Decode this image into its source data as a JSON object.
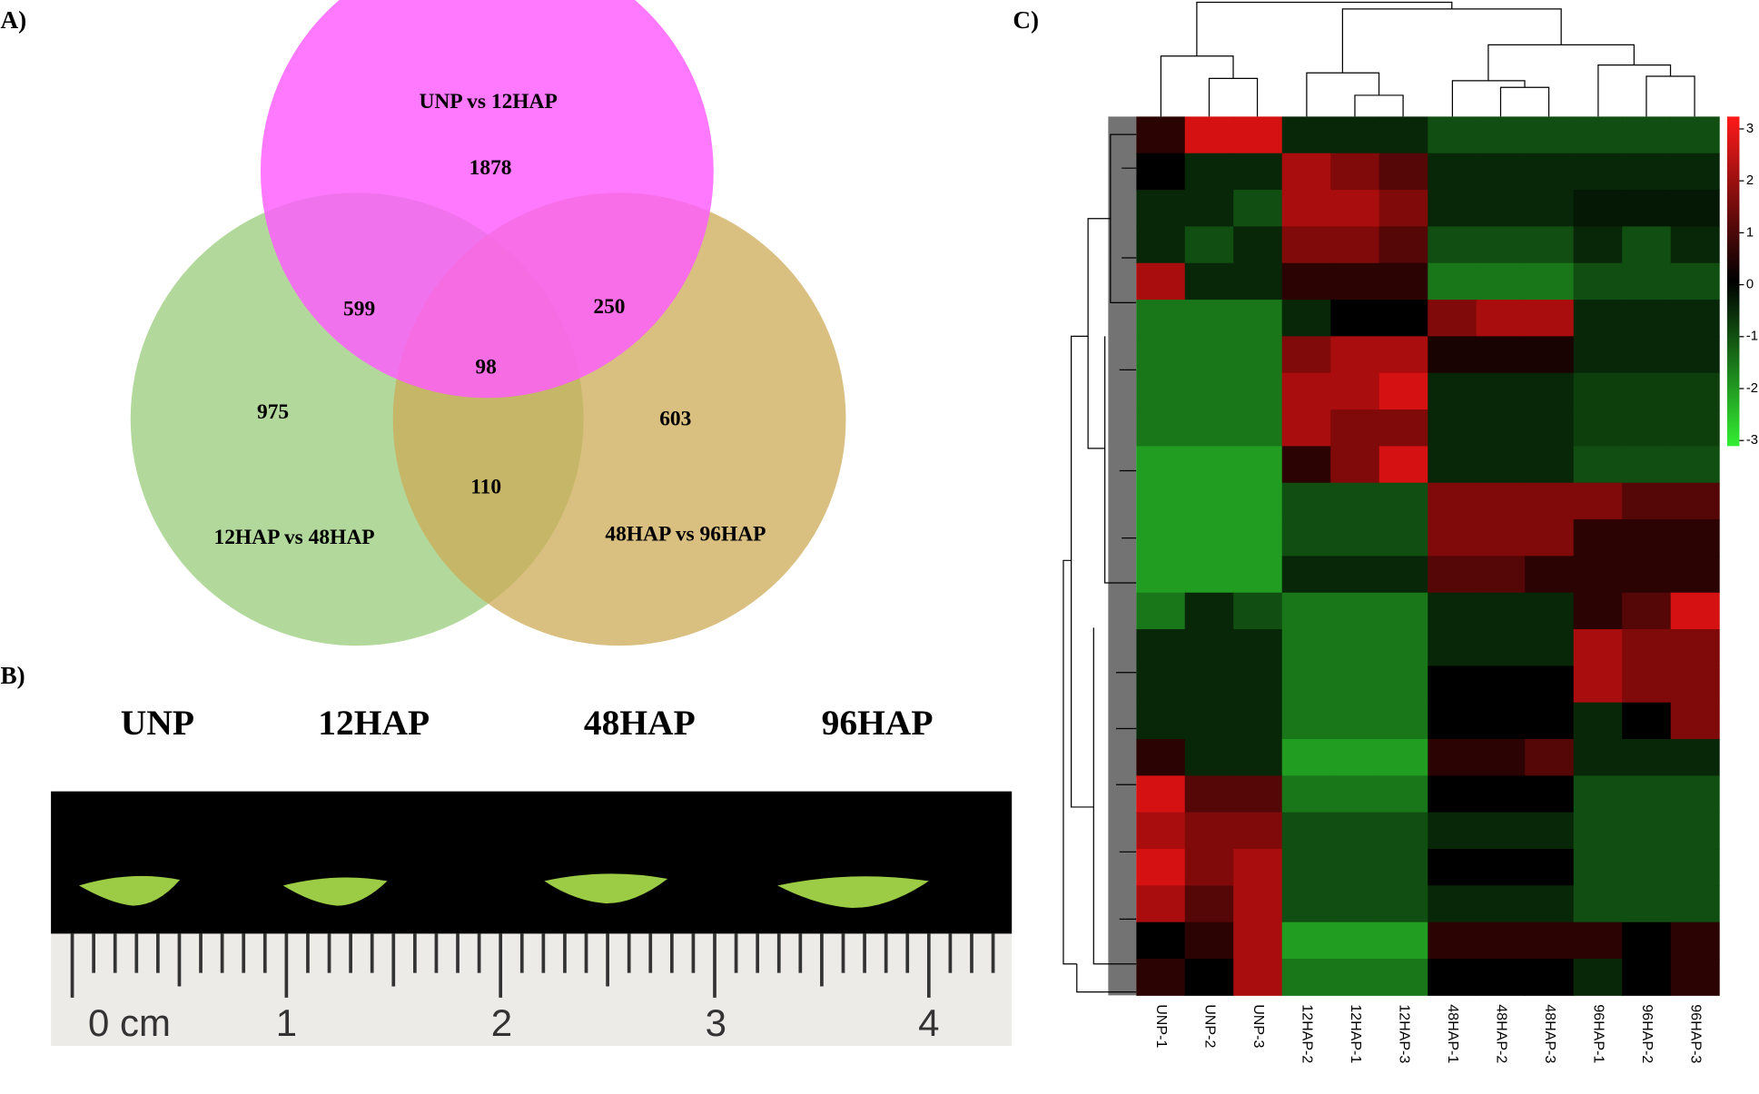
{
  "panels": [
    "A)",
    "B)",
    "C)"
  ],
  "chart_data": [
    {
      "type": "venn",
      "sets": [
        {
          "name": "UNP vs 12HAP",
          "color": "#ff5cff"
        },
        {
          "name": "12HAP vs 48HAP",
          "color": "#98cc7a"
        },
        {
          "name": "48HAP vs 96HAP",
          "color": "#ccaa55"
        }
      ],
      "regions": [
        {
          "sets": [
            0
          ],
          "value": 1878
        },
        {
          "sets": [
            1
          ],
          "value": 975
        },
        {
          "sets": [
            2
          ],
          "value": 603
        },
        {
          "sets": [
            0,
            1
          ],
          "value": 599
        },
        {
          "sets": [
            0,
            2
          ],
          "value": 250
        },
        {
          "sets": [
            1,
            2
          ],
          "value": 110
        },
        {
          "sets": [
            0,
            1,
            2
          ],
          "value": 98
        }
      ]
    },
    {
      "type": "heatmap",
      "categories": [
        "UNP-1",
        "UNP-2",
        "UNP-3",
        "12HAP-2",
        "12HAP-1",
        "12HAP-3",
        "48HAP-1",
        "48HAP-2",
        "48HAP-3",
        "96HAP-1",
        "96HAP-2",
        "96HAP-3"
      ],
      "zlim": [
        -3,
        3
      ],
      "zticks": [
        3,
        2,
        1,
        0,
        -1,
        -2,
        -3
      ],
      "values": [
        [
          0.5,
          2.5,
          2.5,
          -0.5,
          -0.5,
          -0.5,
          -1,
          -1,
          -1,
          -1,
          -1,
          -1
        ],
        [
          0,
          -0.5,
          -0.5,
          2,
          1.5,
          1,
          -0.5,
          -0.5,
          -0.5,
          -0.5,
          -0.5,
          -0.5
        ],
        [
          -0.5,
          -0.5,
          -1,
          2,
          2,
          1.5,
          -0.5,
          -0.5,
          -0.5,
          -0.3,
          -0.3,
          -0.3
        ],
        [
          -0.5,
          -1,
          -0.5,
          1.5,
          1.5,
          1,
          -1,
          -1,
          -1,
          -0.5,
          -1,
          -0.5
        ],
        [
          2,
          -0.5,
          -0.5,
          0.5,
          0.5,
          0.5,
          -1.5,
          -1.5,
          -1.5,
          -1,
          -1,
          -1
        ],
        [
          -1.5,
          -1.5,
          -1.5,
          -0.5,
          0,
          0,
          1.5,
          2,
          2,
          -0.5,
          -0.5,
          -0.5
        ],
        [
          -1.5,
          -1.5,
          -1.5,
          1.5,
          2,
          2,
          0.3,
          0.3,
          0.3,
          -0.5,
          -0.5,
          -0.5
        ],
        [
          -1.5,
          -1.5,
          -1.5,
          2,
          2,
          2.5,
          -0.5,
          -0.5,
          -0.5,
          -0.8,
          -0.8,
          -0.8
        ],
        [
          -1.5,
          -1.5,
          -1.5,
          2,
          1.5,
          1.5,
          -0.5,
          -0.5,
          -0.5,
          -0.8,
          -0.8,
          -0.8
        ],
        [
          -2,
          -2,
          -2,
          0.5,
          1.5,
          2.5,
          -0.5,
          -0.5,
          -0.5,
          -1,
          -1,
          -1
        ],
        [
          -2,
          -2,
          -2,
          -1,
          -1,
          -1,
          1.5,
          1.5,
          1.5,
          1.5,
          1,
          1
        ],
        [
          -2,
          -2,
          -2,
          -1,
          -1,
          -1,
          1.5,
          1.5,
          1.5,
          0.5,
          0.5,
          0.5
        ],
        [
          -2,
          -2,
          -2,
          -0.5,
          -0.5,
          -0.5,
          1,
          1,
          0.5,
          0.5,
          0.5,
          0.5
        ],
        [
          -1.5,
          -0.5,
          -1,
          -1.5,
          -1.5,
          -1.5,
          -0.5,
          -0.5,
          -0.5,
          0.5,
          1,
          2.5
        ],
        [
          -0.5,
          -0.5,
          -0.5,
          -1.5,
          -1.5,
          -1.5,
          -0.5,
          -0.5,
          -0.5,
          2,
          1.5,
          1.5
        ],
        [
          -0.5,
          -0.5,
          -0.5,
          -1.5,
          -1.5,
          -1.5,
          0,
          0,
          0,
          2,
          1.5,
          1.5
        ],
        [
          -0.5,
          -0.5,
          -0.5,
          -1.5,
          -1.5,
          -1.5,
          0,
          0,
          0,
          -0.5,
          0,
          1.5
        ],
        [
          0.5,
          -0.5,
          -0.5,
          -2,
          -2,
          -2,
          0.5,
          0.5,
          1,
          -0.5,
          -0.5,
          -0.5
        ],
        [
          2.5,
          1,
          1,
          -1.5,
          -1.5,
          -1.5,
          0,
          0,
          0,
          -1,
          -1,
          -1
        ],
        [
          2,
          1.5,
          1.5,
          -1,
          -1,
          -1,
          -0.5,
          -0.5,
          -0.5,
          -1,
          -1,
          -1
        ],
        [
          2.5,
          1.5,
          2,
          -1,
          -1,
          -1,
          0,
          0,
          0,
          -1,
          -1,
          -1
        ],
        [
          2,
          1,
          2,
          -1,
          -1,
          -1,
          -0.5,
          -0.5,
          -0.5,
          -1,
          -1,
          -1
        ],
        [
          0,
          0.5,
          2,
          -2,
          -2,
          -2,
          0.5,
          0.5,
          0.5,
          0.5,
          0,
          0.5
        ],
        [
          0.5,
          0,
          2,
          -1.5,
          -1.5,
          -1.5,
          0,
          0,
          0,
          -0.5,
          0,
          0.5
        ]
      ]
    }
  ],
  "photo": {
    "titles": [
      "UNP",
      "12HAP",
      "48HAP",
      "96HAP"
    ],
    "ruler_labels": [
      "0 cm",
      "1",
      "2",
      "3",
      "4"
    ]
  }
}
